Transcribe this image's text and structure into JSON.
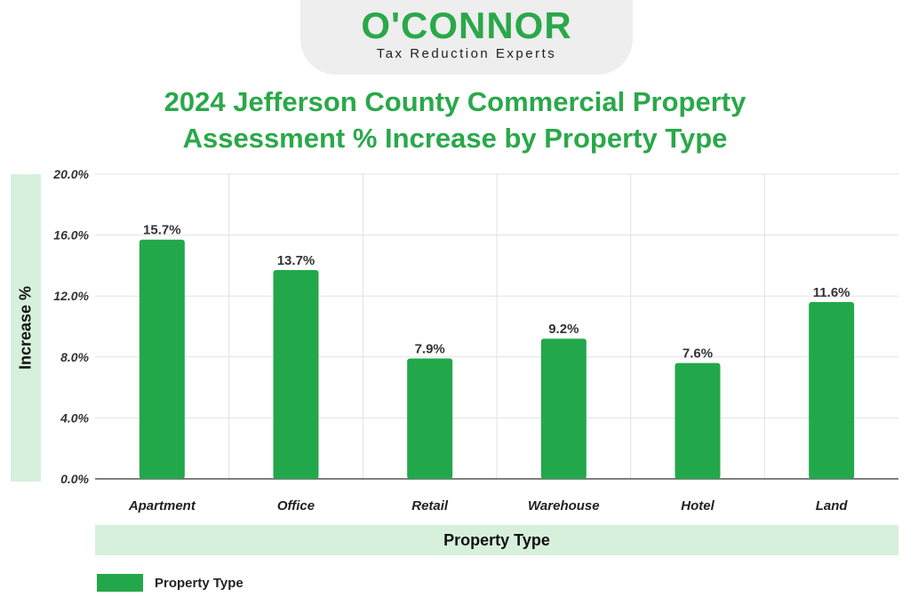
{
  "brand": {
    "name": "O'CONNOR",
    "tagline": "Tax Reduction Experts",
    "color": "#2aa84a"
  },
  "chart_data": {
    "type": "bar",
    "title_lines": [
      "2024 Jefferson County Commercial Property",
      "Assessment % Increase by Property Type"
    ],
    "title": "2024 Jefferson County Commercial Property Assessment % Increase by Property Type",
    "xlabel": "Property Type",
    "ylabel": "Increase %",
    "categories": [
      "Apartment",
      "Office",
      "Retail",
      "Warehouse",
      "Hotel",
      "Land"
    ],
    "values": [
      15.7,
      13.7,
      7.9,
      9.2,
      7.6,
      11.6
    ],
    "data_labels": [
      "15.7%",
      "13.7%",
      "7.9%",
      "9.2%",
      "7.6%",
      "11.6%"
    ],
    "ylim": [
      0,
      20
    ],
    "yticks": [
      0,
      4,
      8,
      12,
      16,
      20
    ],
    "ytick_labels": [
      "0.0%",
      "4.0%",
      "8.0%",
      "12.0%",
      "16.0%",
      "20.0%"
    ],
    "grid": true,
    "legend": {
      "position": "bottom-left",
      "entries": [
        "Property Type"
      ]
    },
    "bar_color": "#22a84a"
  }
}
